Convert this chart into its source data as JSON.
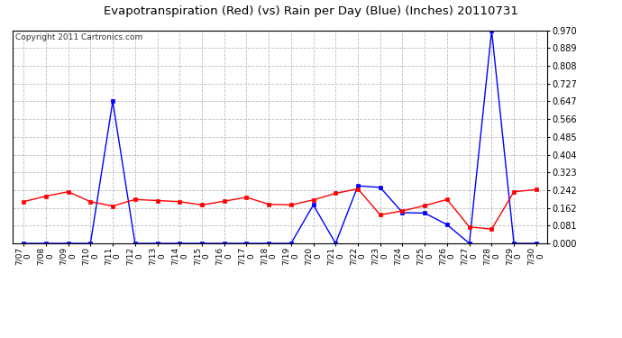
{
  "title": "Evapotranspiration (Red) (vs) Rain per Day (Blue) (Inches) 20110731",
  "copyright": "Copyright 2011 Cartronics.com",
  "x_labels": [
    "7/07",
    "7/08",
    "7/09",
    "7/10",
    "7/11",
    "7/12",
    "7/13",
    "7/14",
    "7/15",
    "7/16",
    "7/17",
    "7/18",
    "7/19",
    "7/20",
    "7/21",
    "7/22",
    "7/23",
    "7/24",
    "7/25",
    "7/26",
    "7/27",
    "7/28",
    "7/29",
    "7/30"
  ],
  "red_values": [
    0.19,
    0.215,
    0.235,
    0.19,
    0.17,
    0.2,
    0.195,
    0.19,
    0.175,
    0.192,
    0.21,
    0.178,
    0.175,
    0.198,
    0.228,
    0.248,
    0.13,
    0.148,
    0.172,
    0.2,
    0.075,
    0.065,
    0.235,
    0.245
  ],
  "blue_values": [
    0.0,
    0.0,
    0.0,
    0.0,
    0.647,
    0.0,
    0.0,
    0.0,
    0.0,
    0.0,
    0.0,
    0.0,
    0.0,
    0.175,
    0.0,
    0.262,
    0.255,
    0.14,
    0.138,
    0.085,
    0.0,
    0.97,
    0.0,
    0.0
  ],
  "y_ticks": [
    0.0,
    0.081,
    0.162,
    0.242,
    0.323,
    0.404,
    0.485,
    0.566,
    0.647,
    0.727,
    0.808,
    0.889,
    0.97
  ],
  "y_min": 0.0,
  "y_max": 0.97,
  "red_color": "#ff0000",
  "blue_color": "#0000ff",
  "bg_color": "#ffffff",
  "plot_bg": "#ffffff",
  "grid_color": "#bbbbbb",
  "title_fontsize": 9.5,
  "copyright_fontsize": 6.5
}
